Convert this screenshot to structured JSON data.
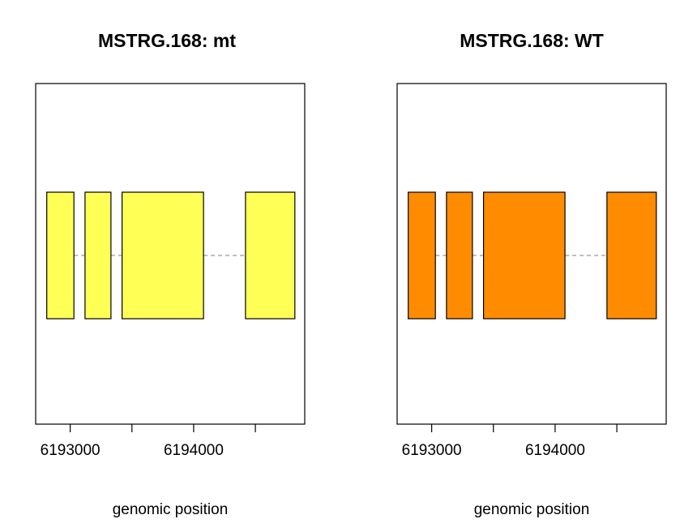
{
  "chart_data": [
    {
      "type": "gene-structure",
      "title": "MSTRG.168: mt",
      "xlabel": "genomic position",
      "fill_color": "#FFFF55",
      "intron_color": "#999999",
      "x_ticks": [
        6193000,
        6193500,
        6194000,
        6194500
      ],
      "x_tick_labels": [
        "6193000",
        "",
        "6194000",
        ""
      ],
      "xlim": [
        6192720,
        6194900
      ],
      "exons": [
        {
          "start": 6192810,
          "end": 6193030
        },
        {
          "start": 6193120,
          "end": 6193330
        },
        {
          "start": 6193420,
          "end": 6194080
        },
        {
          "start": 6194420,
          "end": 6194820
        }
      ]
    },
    {
      "type": "gene-structure",
      "title": "MSTRG.168: WT",
      "xlabel": "genomic position",
      "fill_color": "#FF8C00",
      "intron_color": "#999999",
      "x_ticks": [
        6193000,
        6193500,
        6194000,
        6194500
      ],
      "x_tick_labels": [
        "6193000",
        "",
        "6194000",
        ""
      ],
      "xlim": [
        6192720,
        6194900
      ],
      "exons": [
        {
          "start": 6192810,
          "end": 6193030
        },
        {
          "start": 6193120,
          "end": 6193330
        },
        {
          "start": 6193420,
          "end": 6194080
        },
        {
          "start": 6194420,
          "end": 6194820
        }
      ]
    }
  ]
}
